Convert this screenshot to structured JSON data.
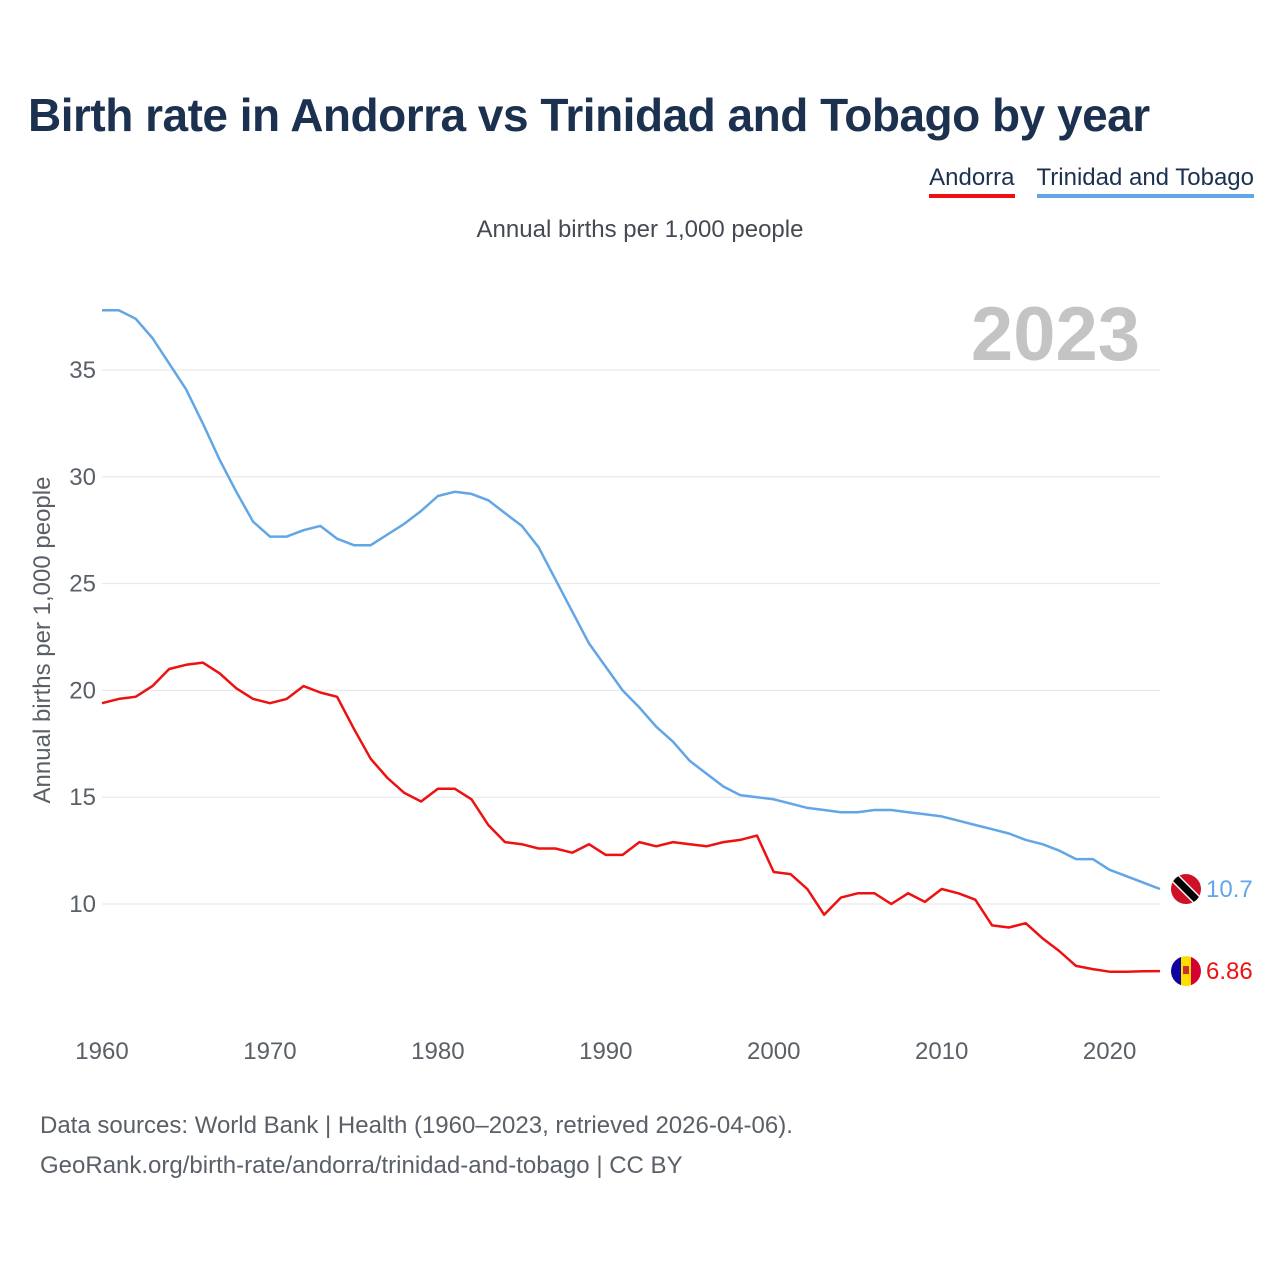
{
  "title": "Birth rate in Andorra vs Trinidad and Tobago by year",
  "legend": {
    "andorra": "Andorra",
    "trinidad": "Trinidad and Tobago"
  },
  "subtitle": "Annual births per 1,000 people",
  "year_label": "2023",
  "footer": {
    "line1": "Data sources: World Bank | Health (1960–2023, retrieved 2026-04-06).",
    "line2": "GeoRank.org/birth-rate/andorra/trinidad-and-tobago | CC BY"
  },
  "colors": {
    "andorra": "#ee1111",
    "trinidad": "#62a6e6",
    "grid": "#e6e6e6",
    "year": "#c4c4c4"
  },
  "chart_data": {
    "type": "line",
    "title": "Birth rate in Andorra vs Trinidad and Tobago by year",
    "xlabel": "",
    "ylabel": "Annual births per 1,000 people",
    "xlim": [
      1960,
      2023
    ],
    "ylim": [
      5,
      38
    ],
    "xticks": [
      1960,
      1970,
      1980,
      1990,
      2000,
      2010,
      2020
    ],
    "yticks": [
      10,
      15,
      20,
      25,
      30,
      35
    ],
    "grid": true,
    "legend": "top-right",
    "x": [
      1960,
      1961,
      1962,
      1963,
      1964,
      1965,
      1966,
      1967,
      1968,
      1969,
      1970,
      1971,
      1972,
      1973,
      1974,
      1975,
      1976,
      1977,
      1978,
      1979,
      1980,
      1981,
      1982,
      1983,
      1984,
      1985,
      1986,
      1987,
      1988,
      1989,
      1990,
      1991,
      1992,
      1993,
      1994,
      1995,
      1996,
      1997,
      1998,
      1999,
      2000,
      2001,
      2002,
      2003,
      2004,
      2005,
      2006,
      2007,
      2008,
      2009,
      2010,
      2011,
      2012,
      2013,
      2014,
      2015,
      2016,
      2017,
      2018,
      2019,
      2020,
      2021,
      2022,
      2023
    ],
    "series": [
      {
        "name": "Trinidad and Tobago",
        "end_label": "10.7",
        "values": [
          37.8,
          37.8,
          37.4,
          36.5,
          35.3,
          34.1,
          32.5,
          30.8,
          29.3,
          27.9,
          27.2,
          27.2,
          27.5,
          27.7,
          27.1,
          26.8,
          26.8,
          27.3,
          27.8,
          28.4,
          29.1,
          29.3,
          29.2,
          28.9,
          28.3,
          27.7,
          26.7,
          25.2,
          23.7,
          22.2,
          21.1,
          20.0,
          19.2,
          18.3,
          17.6,
          16.7,
          16.1,
          15.5,
          15.1,
          15.0,
          14.9,
          14.7,
          14.5,
          14.4,
          14.3,
          14.3,
          14.4,
          14.4,
          14.3,
          14.2,
          14.1,
          13.9,
          13.7,
          13.5,
          13.3,
          13.0,
          12.8,
          12.5,
          12.1,
          12.1,
          11.6,
          11.3,
          11.0,
          10.7
        ]
      },
      {
        "name": "Andorra",
        "end_label": "6.86",
        "values": [
          19.4,
          19.6,
          19.7,
          20.2,
          21.0,
          21.2,
          21.3,
          20.8,
          20.1,
          19.6,
          19.4,
          19.6,
          20.2,
          19.9,
          19.7,
          18.2,
          16.8,
          15.9,
          15.2,
          14.8,
          15.4,
          15.4,
          14.9,
          13.7,
          12.9,
          12.8,
          12.6,
          12.6,
          12.4,
          12.8,
          12.3,
          12.3,
          12.9,
          12.7,
          12.9,
          12.8,
          12.7,
          12.9,
          13.0,
          13.2,
          11.5,
          11.4,
          10.7,
          9.5,
          10.3,
          10.5,
          10.5,
          10.0,
          10.5,
          10.1,
          10.7,
          10.5,
          10.2,
          9.0,
          8.9,
          9.1,
          8.4,
          7.8,
          7.1,
          6.95,
          6.83,
          6.83,
          6.85,
          6.86
        ]
      }
    ]
  }
}
